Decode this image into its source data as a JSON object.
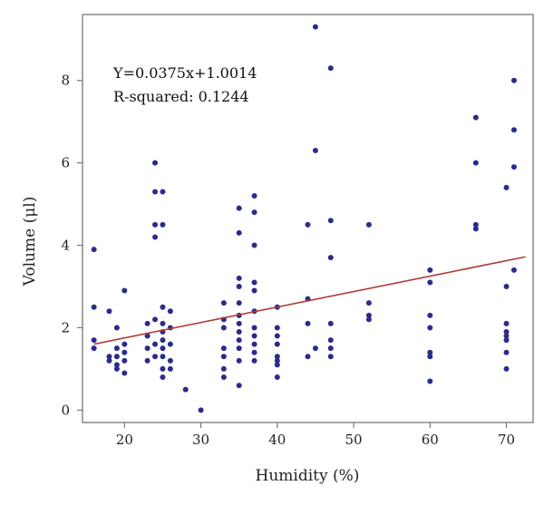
{
  "chart_data": {
    "type": "scatter",
    "xlabel": "Humidity (%)",
    "ylabel": "Volume (μl)",
    "xlim": [
      14.5,
      73.5
    ],
    "ylim": [
      -0.3,
      9.6
    ],
    "xticks": [
      20,
      30,
      40,
      50,
      60,
      70
    ],
    "yticks": [
      0,
      2,
      4,
      6,
      8
    ],
    "grid": false,
    "annotations": [
      "Y=0.0375x+1.0014",
      "R-squared: 0.1244"
    ],
    "trendline": {
      "slope": 0.0375,
      "intercept": 1.0014,
      "color": "#b03a3a"
    },
    "point_color": "#2b2b8c",
    "points": [
      [
        16,
        3.9
      ],
      [
        16,
        2.5
      ],
      [
        16,
        1.7
      ],
      [
        16,
        1.5
      ],
      [
        18,
        2.4
      ],
      [
        18,
        1.3
      ],
      [
        18,
        1.2
      ],
      [
        19,
        2.0
      ],
      [
        19,
        1.5
      ],
      [
        19,
        1.3
      ],
      [
        19,
        1.1
      ],
      [
        19,
        1.0
      ],
      [
        20,
        2.9
      ],
      [
        20,
        1.6
      ],
      [
        20,
        1.4
      ],
      [
        20,
        1.2
      ],
      [
        20,
        0.9
      ],
      [
        23,
        2.1
      ],
      [
        23,
        1.8
      ],
      [
        23,
        1.5
      ],
      [
        23,
        1.2
      ],
      [
        24,
        6.0
      ],
      [
        24,
        5.3
      ],
      [
        24,
        4.5
      ],
      [
        24,
        4.2
      ],
      [
        24,
        2.2
      ],
      [
        24,
        1.6
      ],
      [
        24,
        1.3
      ],
      [
        25,
        5.3
      ],
      [
        25,
        4.5
      ],
      [
        25,
        2.5
      ],
      [
        25,
        2.1
      ],
      [
        25,
        1.9
      ],
      [
        25,
        1.7
      ],
      [
        25,
        1.5
      ],
      [
        25,
        1.3
      ],
      [
        25,
        1.0
      ],
      [
        25,
        0.8
      ],
      [
        26,
        2.4
      ],
      [
        26,
        2.0
      ],
      [
        26,
        1.6
      ],
      [
        26,
        1.2
      ],
      [
        26,
        1.0
      ],
      [
        28,
        0.5
      ],
      [
        30,
        0.0
      ],
      [
        33,
        2.6
      ],
      [
        33,
        2.2
      ],
      [
        33,
        2.0
      ],
      [
        33,
        1.5
      ],
      [
        33,
        1.3
      ],
      [
        33,
        1.0
      ],
      [
        33,
        0.8
      ],
      [
        35,
        4.9
      ],
      [
        35,
        4.3
      ],
      [
        35,
        3.2
      ],
      [
        35,
        3.0
      ],
      [
        35,
        2.6
      ],
      [
        35,
        2.3
      ],
      [
        35,
        2.1
      ],
      [
        35,
        1.9
      ],
      [
        35,
        1.7
      ],
      [
        35,
        1.5
      ],
      [
        35,
        1.2
      ],
      [
        35,
        0.6
      ],
      [
        37,
        5.2
      ],
      [
        37,
        4.8
      ],
      [
        37,
        4.0
      ],
      [
        37,
        3.1
      ],
      [
        37,
        2.9
      ],
      [
        37,
        2.4
      ],
      [
        37,
        2.0
      ],
      [
        37,
        1.8
      ],
      [
        37,
        1.6
      ],
      [
        37,
        1.4
      ],
      [
        37,
        1.2
      ],
      [
        40,
        2.5
      ],
      [
        40,
        2.0
      ],
      [
        40,
        1.8
      ],
      [
        40,
        1.6
      ],
      [
        40,
        1.3
      ],
      [
        40,
        1.2
      ],
      [
        40,
        1.1
      ],
      [
        40,
        0.8
      ],
      [
        44,
        4.5
      ],
      [
        44,
        2.7
      ],
      [
        44,
        2.1
      ],
      [
        44,
        1.3
      ],
      [
        45,
        9.3
      ],
      [
        45,
        6.3
      ],
      [
        45,
        1.5
      ],
      [
        47,
        8.3
      ],
      [
        47,
        4.6
      ],
      [
        47,
        3.7
      ],
      [
        47,
        2.1
      ],
      [
        47,
        1.7
      ],
      [
        47,
        1.5
      ],
      [
        47,
        1.3
      ],
      [
        52,
        4.5
      ],
      [
        52,
        2.6
      ],
      [
        52,
        2.3
      ],
      [
        52,
        2.2
      ],
      [
        60,
        3.4
      ],
      [
        60,
        3.1
      ],
      [
        60,
        2.3
      ],
      [
        60,
        2.0
      ],
      [
        60,
        1.4
      ],
      [
        60,
        1.3
      ],
      [
        60,
        0.7
      ],
      [
        66,
        7.1
      ],
      [
        66,
        6.0
      ],
      [
        66,
        4.5
      ],
      [
        66,
        4.4
      ],
      [
        70,
        5.4
      ],
      [
        70,
        3.0
      ],
      [
        70,
        2.1
      ],
      [
        70,
        1.9
      ],
      [
        70,
        1.8
      ],
      [
        70,
        1.7
      ],
      [
        70,
        1.4
      ],
      [
        70,
        1.0
      ],
      [
        71,
        8.0
      ],
      [
        71,
        6.8
      ],
      [
        71,
        5.9
      ],
      [
        71,
        3.4
      ]
    ]
  }
}
